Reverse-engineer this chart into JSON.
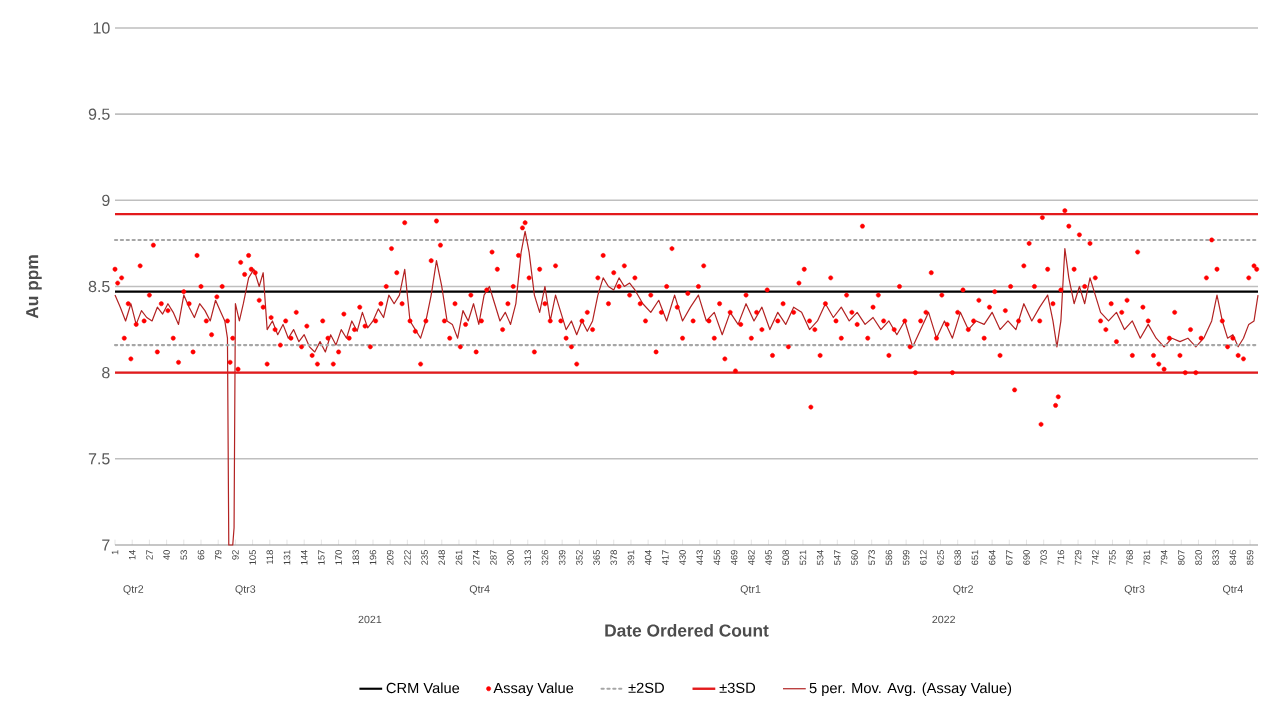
{
  "chart_data": {
    "type": "scatter",
    "xlabel": "Date Ordered Count",
    "ylabel": "Au ppm",
    "xlim": [
      1,
      865
    ],
    "ylim": [
      7,
      10
    ],
    "xticks": [
      1,
      14,
      27,
      40,
      53,
      66,
      79,
      92,
      105,
      118,
      131,
      144,
      157,
      170,
      183,
      196,
      209,
      222,
      235,
      248,
      261,
      274,
      287,
      300,
      313,
      326,
      339,
      352,
      365,
      378,
      391,
      404,
      417,
      430,
      443,
      456,
      469,
      482,
      495,
      508,
      521,
      534,
      547,
      560,
      573,
      586,
      599,
      612,
      625,
      638,
      651,
      664,
      677,
      690,
      703,
      716,
      729,
      742,
      755,
      768,
      781,
      794,
      807,
      820,
      833,
      846,
      859
    ],
    "yticks": [
      7,
      7.5,
      8,
      8.5,
      9,
      9.5,
      10
    ],
    "grid": "y",
    "legend": "bottom",
    "ref_lines": [
      {
        "axis": "y",
        "value": 8.16,
        "color": "#a6a6a6",
        "line_style": "dotted"
      },
      {
        "axis": "y",
        "value": 8.0,
        "color": "#e31a1c",
        "line_style": "solid"
      }
    ],
    "annotations": [
      "Qtr2",
      "Qtr3",
      "Qtr4",
      "Qtr1",
      "Qtr2",
      "Qtr3",
      "Qtr4",
      "2021",
      "2022"
    ],
    "series": [
      {
        "name": "CRM Value",
        "type": "line",
        "color": "#000000",
        "line_style": "solid",
        "marker": "none",
        "x": [
          1,
          865
        ],
        "values": [
          8.47,
          8.47
        ]
      },
      {
        "name": "Assay Value",
        "color": "#ff0000",
        "marker": "circle",
        "x": [
          1,
          3,
          6,
          8,
          11,
          13,
          17,
          20,
          23,
          27,
          30,
          33,
          36,
          41,
          45,
          49,
          53,
          57,
          60,
          63,
          66,
          70,
          74,
          78,
          82,
          86,
          88,
          90,
          94,
          96,
          99,
          102,
          104,
          107,
          110,
          113,
          116,
          119,
          122,
          126,
          130,
          134,
          138,
          142,
          146,
          150,
          154,
          158,
          162,
          166,
          170,
          174,
          178,
          182,
          186,
          190,
          194,
          198,
          202,
          206,
          210,
          214,
          218,
          220,
          224,
          228,
          232,
          236,
          240,
          244,
          247,
          250,
          254,
          258,
          262,
          266,
          270,
          274,
          278,
          282,
          286,
          290,
          294,
          298,
          302,
          306,
          309,
          311,
          314,
          318,
          322,
          326,
          330,
          334,
          338,
          342,
          346,
          350,
          354,
          358,
          362,
          366,
          370,
          374,
          378,
          382,
          386,
          390,
          394,
          398,
          402,
          406,
          410,
          414,
          418,
          422,
          426,
          430,
          434,
          438,
          442,
          446,
          450,
          454,
          458,
          462,
          466,
          470,
          474,
          478,
          482,
          486,
          490,
          494,
          498,
          502,
          506,
          510,
          514,
          518,
          522,
          526,
          527,
          530,
          534,
          538,
          542,
          546,
          550,
          554,
          558,
          562,
          566,
          570,
          574,
          578,
          582,
          586,
          590,
          594,
          598,
          602,
          606,
          610,
          614,
          618,
          622,
          626,
          630,
          634,
          638,
          642,
          646,
          650,
          654,
          658,
          662,
          666,
          670,
          674,
          678,
          681,
          684,
          688,
          692,
          696,
          700,
          701,
          702,
          706,
          710,
          712,
          714,
          716,
          719,
          722,
          726,
          730,
          734,
          738,
          742,
          746,
          750,
          754,
          758,
          762,
          766,
          770,
          774,
          778,
          782,
          786,
          790,
          794,
          798,
          802,
          806,
          810,
          814,
          818,
          822,
          826,
          830,
          834,
          838,
          842,
          846,
          850,
          854,
          858,
          862,
          864
        ],
        "values": [
          8.6,
          8.52,
          8.55,
          8.2,
          8.4,
          8.08,
          8.28,
          8.62,
          8.3,
          8.45,
          8.74,
          8.12,
          8.4,
          8.36,
          8.2,
          8.06,
          8.47,
          8.4,
          8.12,
          8.68,
          8.5,
          8.3,
          8.22,
          8.44,
          8.5,
          8.3,
          8.06,
          8.2,
          8.02,
          8.64,
          8.57,
          8.68,
          8.6,
          8.58,
          8.42,
          8.38,
          8.05,
          8.32,
          8.25,
          8.16,
          8.3,
          8.2,
          8.35,
          8.15,
          8.27,
          8.1,
          8.05,
          8.3,
          8.2,
          8.05,
          8.12,
          8.34,
          8.2,
          8.25,
          8.38,
          8.27,
          8.15,
          8.3,
          8.4,
          8.5,
          8.72,
          8.58,
          8.4,
          8.87,
          8.3,
          8.24,
          8.05,
          8.3,
          8.65,
          8.88,
          8.74,
          8.3,
          8.2,
          8.4,
          8.15,
          8.28,
          8.45,
          8.12,
          8.3,
          8.48,
          8.7,
          8.6,
          8.25,
          8.4,
          8.5,
          8.68,
          8.84,
          8.87,
          8.55,
          8.12,
          8.6,
          8.4,
          8.3,
          8.62,
          8.3,
          8.2,
          8.15,
          8.05,
          8.3,
          8.35,
          8.25,
          8.55,
          8.68,
          8.4,
          8.58,
          8.5,
          8.62,
          8.45,
          8.55,
          8.4,
          8.3,
          8.45,
          8.12,
          8.35,
          8.5,
          8.72,
          8.38,
          8.2,
          8.46,
          8.3,
          8.5,
          8.62,
          8.3,
          8.2,
          8.4,
          8.08,
          8.35,
          8.01,
          8.28,
          8.45,
          8.2,
          8.35,
          8.25,
          8.48,
          8.1,
          8.3,
          8.4,
          8.15,
          8.35,
          8.52,
          8.6,
          8.3,
          7.8,
          8.25,
          8.1,
          8.4,
          8.55,
          8.3,
          8.2,
          8.45,
          8.35,
          8.28,
          8.85,
          8.2,
          8.38,
          8.45,
          8.3,
          8.1,
          8.25,
          8.5,
          8.3,
          8.15,
          8.0,
          8.3,
          8.35,
          8.58,
          8.2,
          8.45,
          8.28,
          8.0,
          8.35,
          8.48,
          8.25,
          8.3,
          8.42,
          8.2,
          8.38,
          8.47,
          8.1,
          8.36,
          8.5,
          7.9,
          8.3,
          8.62,
          8.75,
          8.5,
          8.3,
          7.7,
          8.9,
          8.6,
          8.4,
          7.81,
          7.86,
          8.48,
          8.94,
          8.85,
          8.6,
          8.8,
          8.5,
          8.75,
          8.55,
          8.3,
          8.25,
          8.4,
          8.18,
          8.35,
          8.42,
          8.1,
          8.7,
          8.38,
          8.3,
          8.1,
          8.05,
          8.02,
          8.2,
          8.35,
          8.1,
          8.0,
          8.25,
          8.0,
          8.2,
          8.55,
          8.77,
          8.6,
          8.3,
          8.15,
          8.2,
          8.1,
          8.08,
          8.55,
          8.62,
          8.6
        ]
      },
      {
        "name": "±2SD",
        "type": "line",
        "color": "#a6a6a6",
        "line_style": "dotted",
        "marker": "none",
        "x": [
          1,
          865
        ],
        "values": [
          8.77,
          8.77
        ]
      },
      {
        "name": "±3SD",
        "type": "line",
        "color": "#e31a1c",
        "line_style": "solid",
        "marker": "none",
        "x": [
          1,
          865
        ],
        "values": [
          8.92,
          8.92
        ]
      },
      {
        "name": "5 per. Mov. Avg. (Assay Value)",
        "type": "line",
        "color": "#b22222",
        "line_style": "solid",
        "marker": "none",
        "x": [
          1,
          5,
          9,
          13,
          17,
          21,
          25,
          29,
          33,
          37,
          41,
          45,
          49,
          53,
          57,
          61,
          65,
          69,
          73,
          77,
          81,
          84,
          86,
          87,
          90,
          91,
          92,
          95,
          98,
          102,
          106,
          110,
          113,
          116,
          120,
          124,
          128,
          132,
          136,
          140,
          144,
          148,
          152,
          156,
          160,
          164,
          168,
          172,
          176,
          180,
          184,
          188,
          192,
          196,
          200,
          204,
          208,
          212,
          216,
          220,
          224,
          228,
          232,
          236,
          240,
          244,
          248,
          252,
          256,
          260,
          264,
          268,
          272,
          276,
          280,
          284,
          288,
          292,
          296,
          300,
          304,
          308,
          311,
          314,
          318,
          322,
          326,
          330,
          334,
          338,
          342,
          346,
          350,
          354,
          358,
          362,
          366,
          370,
          374,
          378,
          382,
          386,
          390,
          394,
          400,
          406,
          412,
          418,
          424,
          430,
          436,
          442,
          448,
          454,
          460,
          466,
          472,
          478,
          484,
          490,
          496,
          502,
          508,
          514,
          520,
          526,
          532,
          538,
          544,
          550,
          556,
          562,
          568,
          574,
          580,
          586,
          592,
          598,
          604,
          610,
          616,
          622,
          628,
          634,
          640,
          646,
          652,
          658,
          664,
          670,
          676,
          682,
          688,
          694,
          700,
          706,
          710,
          713,
          716,
          719,
          722,
          726,
          730,
          734,
          738,
          742,
          746,
          752,
          758,
          764,
          770,
          776,
          782,
          788,
          794,
          800,
          806,
          812,
          818,
          824,
          830,
          834,
          838,
          842,
          846,
          850,
          854,
          858,
          862,
          865
        ],
        "values": [
          8.45,
          8.38,
          8.3,
          8.4,
          8.28,
          8.36,
          8.32,
          8.3,
          8.38,
          8.34,
          8.4,
          8.35,
          8.28,
          8.45,
          8.38,
          8.32,
          8.4,
          8.36,
          8.3,
          8.42,
          8.35,
          8.3,
          8.2,
          7.0,
          7.0,
          7.1,
          8.4,
          8.3,
          8.4,
          8.55,
          8.6,
          8.5,
          8.58,
          8.25,
          8.3,
          8.22,
          8.28,
          8.2,
          8.25,
          8.18,
          8.22,
          8.15,
          8.12,
          8.18,
          8.12,
          8.22,
          8.16,
          8.25,
          8.2,
          8.3,
          8.24,
          8.35,
          8.26,
          8.3,
          8.37,
          8.32,
          8.45,
          8.4,
          8.45,
          8.6,
          8.3,
          8.25,
          8.2,
          8.3,
          8.45,
          8.65,
          8.5,
          8.3,
          8.28,
          8.2,
          8.36,
          8.3,
          8.4,
          8.28,
          8.45,
          8.5,
          8.4,
          8.3,
          8.35,
          8.28,
          8.4,
          8.7,
          8.82,
          8.7,
          8.45,
          8.35,
          8.5,
          8.3,
          8.45,
          8.35,
          8.25,
          8.3,
          8.22,
          8.3,
          8.24,
          8.3,
          8.45,
          8.55,
          8.5,
          8.48,
          8.55,
          8.5,
          8.52,
          8.48,
          8.4,
          8.35,
          8.42,
          8.3,
          8.45,
          8.3,
          8.38,
          8.45,
          8.3,
          8.35,
          8.22,
          8.35,
          8.28,
          8.4,
          8.3,
          8.38,
          8.25,
          8.35,
          8.28,
          8.38,
          8.35,
          8.25,
          8.3,
          8.4,
          8.32,
          8.38,
          8.3,
          8.35,
          8.28,
          8.32,
          8.25,
          8.3,
          8.22,
          8.3,
          8.15,
          8.25,
          8.35,
          8.2,
          8.3,
          8.2,
          8.35,
          8.25,
          8.3,
          8.28,
          8.35,
          8.25,
          8.3,
          8.25,
          8.4,
          8.3,
          8.38,
          8.45,
          8.3,
          8.15,
          8.3,
          8.72,
          8.55,
          8.4,
          8.5,
          8.4,
          8.55,
          8.45,
          8.35,
          8.3,
          8.35,
          8.25,
          8.3,
          8.2,
          8.28,
          8.2,
          8.15,
          8.2,
          8.18,
          8.2,
          8.15,
          8.2,
          8.3,
          8.45,
          8.3,
          8.2,
          8.22,
          8.15,
          8.2,
          8.28,
          8.3,
          8.45
        ]
      }
    ]
  }
}
